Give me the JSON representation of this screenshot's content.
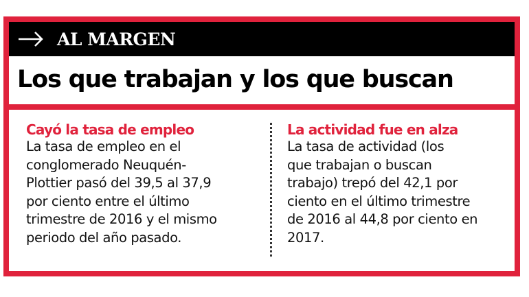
{
  "header": {
    "kicker": "AL MARGEN",
    "title": "Los que trabajan y los que buscan",
    "icon": "arrow-right-icon"
  },
  "colors": {
    "accent": "#e0223c",
    "bar": "#000000"
  },
  "columns": [
    {
      "heading": "Cayó la tasa de empleo",
      "lines": [
        "La tasa de empleo en el",
        "conglomerado Neuquén-",
        "Plottier pasó del 39,5 al 37,9",
        "por ciento entre el último",
        "trimestre de 2016 y el mismo",
        "periodo del año pasado."
      ]
    },
    {
      "heading": "La actividad fue en alza",
      "lines": [
        "La tasa de actividad (los",
        "que trabajan o buscan",
        "trabajo) trepó del 42,1 por",
        "ciento en el último trimestre",
        "de 2016 al 44,8 por ciento en",
        "2017."
      ]
    }
  ]
}
